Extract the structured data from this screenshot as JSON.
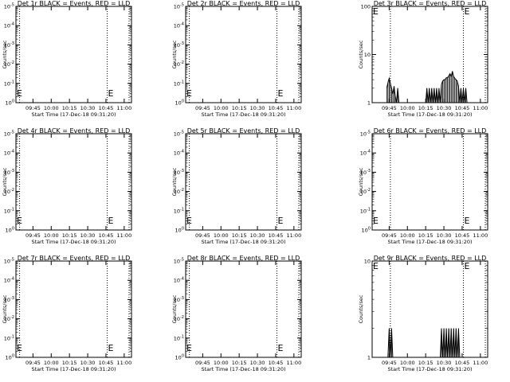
{
  "chart_data": [
    {
      "type": "line",
      "title": "Det 1r BLACK = Events, RED = LLD",
      "xlabel": "Start Time (17-Dec-18 09:31:20)",
      "ylabel": "Counts/sec",
      "scale": "log",
      "xticks": [
        "09:45",
        "10:00",
        "10:15",
        "10:30",
        "10:45",
        "11:00"
      ],
      "yticks": [
        "10^0",
        "10^-1",
        "10^-2",
        "10^-3",
        "10^-4",
        "10^-5"
      ],
      "ylim": [
        1,
        1e-05
      ],
      "marker_lines": [
        "09:34",
        "10:46"
      ],
      "marker_labels": [
        {
          "x": "09:31",
          "text": "E"
        },
        {
          "x": "10:46",
          "text": "E"
        }
      ],
      "series": []
    },
    {
      "type": "line",
      "title": "Det 2r BLACK = Events, RED = LLD",
      "xlabel": "Start Time (17-Dec-18 09:31:20)",
      "ylabel": "Counts/sec",
      "scale": "log",
      "xticks": [
        "09:45",
        "10:00",
        "10:15",
        "10:30",
        "10:45",
        "11:00"
      ],
      "yticks": [
        "10^0",
        "10^-1",
        "10^-2",
        "10^-3",
        "10^-4",
        "10^-5"
      ],
      "ylim": [
        1,
        1e-05
      ],
      "marker_lines": [
        "09:34",
        "10:46"
      ],
      "marker_labels": [
        {
          "x": "09:31",
          "text": "E"
        },
        {
          "x": "10:46",
          "text": "E"
        }
      ],
      "series": []
    },
    {
      "type": "line",
      "title": "Det 3r BLACK = Events, RED = LLD",
      "xlabel": "Start Time (17-Dec-18 09:31:20)",
      "ylabel": "Counts/sec",
      "scale": "log",
      "xticks": [
        "09:45",
        "10:00",
        "10:15",
        "10:30",
        "10:45",
        "11:00"
      ],
      "yticks": [
        "1",
        "10",
        "100"
      ],
      "ylim": [
        1,
        100
      ],
      "marker_lines": [
        "09:46",
        "10:46"
      ],
      "marker_labels": [
        {
          "x": "09:31",
          "text": "E"
        },
        {
          "x": "10:46",
          "text": "E"
        }
      ],
      "series": [
        {
          "points": [
            [
              "09:43",
              2.0
            ],
            [
              "09:44",
              2.6
            ],
            [
              "09:45",
              3.2
            ],
            [
              "09:46",
              2.5
            ],
            [
              "09:47",
              2.0
            ],
            [
              "09:48",
              1.5
            ],
            [
              "09:49",
              2.2
            ],
            [
              "09:50",
              1.4
            ],
            [
              "09:51",
              1.0
            ],
            [
              "09:52",
              2.0
            ],
            [
              "09:53",
              1.0
            ],
            [
              "09:54",
              1.0
            ],
            [
              "10:15",
              1.0
            ],
            [
              "10:16",
              2.0
            ],
            [
              "10:17",
              1.0
            ],
            [
              "10:18",
              2.0
            ],
            [
              "10:19",
              1.0
            ],
            [
              "10:20",
              2.0
            ],
            [
              "10:21",
              1.0
            ],
            [
              "10:22",
              2.0
            ],
            [
              "10:23",
              1.0
            ],
            [
              "10:24",
              2.0
            ],
            [
              "10:25",
              1.0
            ],
            [
              "10:26",
              2.0
            ],
            [
              "10:27",
              1.0
            ],
            [
              "10:28",
              2.4
            ],
            [
              "10:29",
              2.8
            ],
            [
              "10:30",
              3.0
            ],
            [
              "10:31",
              3.0
            ],
            [
              "10:32",
              3.3
            ],
            [
              "10:33",
              3.3
            ],
            [
              "10:34",
              3.6
            ],
            [
              "10:35",
              4.0
            ],
            [
              "10:36",
              3.5
            ],
            [
              "10:37",
              4.5
            ],
            [
              "10:38",
              3.5
            ],
            [
              "10:39",
              3.2
            ],
            [
              "10:40",
              3.0
            ],
            [
              "10:41",
              2.8
            ],
            [
              "10:42",
              2.2
            ],
            [
              "10:43",
              1.0
            ],
            [
              "10:44",
              2.0
            ],
            [
              "10:45",
              1.0
            ],
            [
              "10:46",
              2.0
            ],
            [
              "10:47",
              1.0
            ],
            [
              "10:48",
              2.0
            ],
            [
              "10:49",
              1.0
            ]
          ]
        }
      ]
    },
    {
      "type": "line",
      "title": "Det 4r BLACK = Events, RED = LLD",
      "xlabel": "Start Time (17-Dec-18 09:31:20)",
      "ylabel": "Counts/sec",
      "scale": "log",
      "xticks": [
        "09:45",
        "10:00",
        "10:15",
        "10:30",
        "10:45",
        "11:00"
      ],
      "yticks": [
        "10^0",
        "10^-1",
        "10^-2",
        "10^-3",
        "10^-4",
        "10^-5"
      ],
      "ylim": [
        1,
        1e-05
      ],
      "marker_lines": [
        "09:34",
        "10:46"
      ],
      "marker_labels": [
        {
          "x": "09:31",
          "text": "E"
        },
        {
          "x": "10:46",
          "text": "E"
        }
      ],
      "series": []
    },
    {
      "type": "line",
      "title": "Det 5r BLACK = Events, RED = LLD",
      "xlabel": "Start Time (17-Dec-18 09:31:20)",
      "ylabel": "Counts/sec",
      "scale": "log",
      "xticks": [
        "09:45",
        "10:00",
        "10:15",
        "10:30",
        "10:45",
        "11:00"
      ],
      "yticks": [
        "10^0",
        "10^-1",
        "10^-2",
        "10^-3",
        "10^-4",
        "10^-5"
      ],
      "ylim": [
        1,
        1e-05
      ],
      "marker_lines": [
        "09:34",
        "10:46"
      ],
      "marker_labels": [
        {
          "x": "09:31",
          "text": "E"
        },
        {
          "x": "10:46",
          "text": "E"
        }
      ],
      "series": []
    },
    {
      "type": "line",
      "title": "Det 6r BLACK = Events, RED = LLD",
      "xlabel": "Start Time (17-Dec-18 09:31:20)",
      "ylabel": "Counts/sec",
      "scale": "log",
      "xticks": [
        "09:45",
        "10:00",
        "10:15",
        "10:30",
        "10:45",
        "11:00"
      ],
      "yticks": [
        "10^0",
        "10^-1",
        "10^-2",
        "10^-3",
        "10^-4",
        "10^-5"
      ],
      "ylim": [
        1,
        1e-05
      ],
      "marker_lines": [
        "09:46",
        "10:46"
      ],
      "marker_labels": [
        {
          "x": "09:31",
          "text": "E"
        },
        {
          "x": "10:46",
          "text": "E"
        }
      ],
      "series": []
    },
    {
      "type": "line",
      "title": "Det 7r BLACK = Events, RED = LLD",
      "xlabel": "Start Time (17-Dec-18 09:31:20)",
      "ylabel": "Counts/sec",
      "scale": "log",
      "xticks": [
        "09:45",
        "10:00",
        "10:15",
        "10:30",
        "10:45",
        "11:00"
      ],
      "yticks": [
        "10^0",
        "10^-1",
        "10^-2",
        "10^-3",
        "10^-4",
        "10^-5"
      ],
      "ylim": [
        1,
        1e-05
      ],
      "marker_lines": [
        "09:34",
        "10:46"
      ],
      "marker_labels": [
        {
          "x": "09:31",
          "text": "E"
        },
        {
          "x": "10:46",
          "text": "E"
        }
      ],
      "series": []
    },
    {
      "type": "line",
      "title": "Det 8r BLACK = Events, RED = LLD",
      "xlabel": "Start Time (17-Dec-18 09:31:20)",
      "ylabel": "Counts/sec",
      "scale": "log",
      "xticks": [
        "09:45",
        "10:00",
        "10:15",
        "10:30",
        "10:45",
        "11:00"
      ],
      "yticks": [
        "10^0",
        "10^-1",
        "10^-2",
        "10^-3",
        "10^-4",
        "10^-5"
      ],
      "ylim": [
        1,
        1e-05
      ],
      "marker_lines": [
        "09:34",
        "10:46"
      ],
      "marker_labels": [
        {
          "x": "09:31",
          "text": "E"
        },
        {
          "x": "10:46",
          "text": "E"
        }
      ],
      "series": []
    },
    {
      "type": "line",
      "title": "Det 9r BLACK = Events, RED = LLD",
      "xlabel": "Start Time (17-Dec-18 09:31:20)",
      "ylabel": "Counts/sec",
      "scale": "log",
      "xticks": [
        "09:45",
        "10:00",
        "10:15",
        "10:30",
        "10:45",
        "11:00"
      ],
      "yticks": [
        "1",
        "10"
      ],
      "ylim": [
        1,
        10
      ],
      "marker_lines": [
        "09:46",
        "10:46"
      ],
      "marker_labels": [
        {
          "x": "09:31",
          "text": "E"
        },
        {
          "x": "10:46",
          "text": "E"
        }
      ],
      "series": [
        {
          "points": [
            [
              "09:44",
              1.0
            ],
            [
              "09:45",
              2.0
            ],
            [
              "09:46",
              1.0
            ],
            [
              "09:47",
              2.0
            ],
            [
              "09:48",
              1.0
            ],
            [
              "10:27",
              1.0
            ],
            [
              "10:28",
              2.0
            ],
            [
              "10:29",
              1.0
            ],
            [
              "10:30",
              2.0
            ],
            [
              "10:31",
              1.0
            ],
            [
              "10:32",
              2.0
            ],
            [
              "10:33",
              1.0
            ],
            [
              "10:34",
              2.0
            ],
            [
              "10:35",
              1.0
            ],
            [
              "10:36",
              2.0
            ],
            [
              "10:37",
              1.0
            ],
            [
              "10:38",
              2.0
            ],
            [
              "10:39",
              1.0
            ],
            [
              "10:40",
              2.0
            ],
            [
              "10:41",
              1.0
            ],
            [
              "10:42",
              2.0
            ],
            [
              "10:43",
              1.0
            ]
          ]
        }
      ]
    }
  ]
}
